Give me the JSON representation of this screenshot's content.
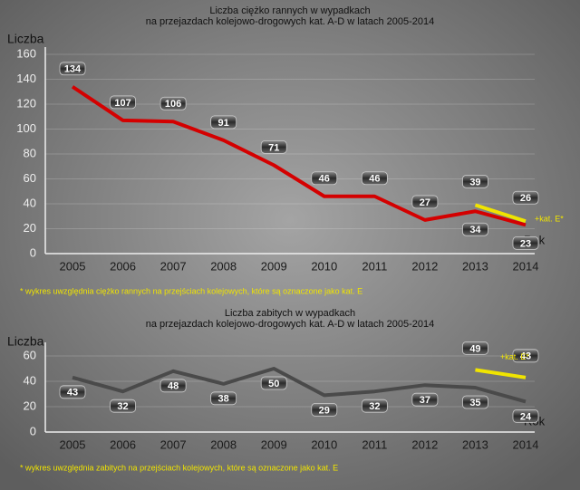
{
  "chart_data": [
    {
      "type": "line",
      "title": [
        "Liczba ciężko rannych w wypadkach",
        "na przejazdach kolejowo-drogowych kat. A-D w latach 2005-2014"
      ],
      "y_label": "Liczba",
      "x_label": "Rok",
      "categories": [
        "2005",
        "2006",
        "2007",
        "2008",
        "2009",
        "2010",
        "2011",
        "2012",
        "2013",
        "2014"
      ],
      "series": [
        {
          "color": "#d40000",
          "values": [
            134,
            107,
            106,
            91,
            71,
            46,
            46,
            27,
            34,
            23
          ]
        },
        {
          "name": "+kat. E*",
          "color": "#f0e400",
          "values": [
            null,
            null,
            null,
            null,
            null,
            null,
            null,
            null,
            39,
            26
          ]
        }
      ],
      "ylim": [
        0,
        160
      ],
      "yticks": [
        0,
        20,
        40,
        60,
        80,
        100,
        120,
        140,
        160
      ],
      "grid": true,
      "note": "* wykres uwzględnia ciężko rannych na przejściach kolejowych, które są oznaczone jako kat. E"
    },
    {
      "type": "line",
      "title": [
        "Liczba zabitych w wypadkach",
        "na przejazdach kolejowo-drogowych kat. A-D w latach 2005-2014"
      ],
      "y_label": "Liczba",
      "x_label": "Rok",
      "categories": [
        "2005",
        "2006",
        "2007",
        "2008",
        "2009",
        "2010",
        "2011",
        "2012",
        "2013",
        "2014"
      ],
      "series": [
        {
          "color": "#4a4a4a",
          "values": [
            43,
            32,
            48,
            38,
            50,
            29,
            32,
            37,
            35,
            24
          ]
        },
        {
          "name": "+kat. E*",
          "color": "#f0e400",
          "values": [
            null,
            null,
            null,
            null,
            null,
            null,
            null,
            null,
            49,
            43
          ]
        }
      ],
      "ylim": [
        0,
        65
      ],
      "yticks": [
        0,
        20,
        40,
        60
      ],
      "grid": true,
      "note": "* wykres uwzględnia zabitych na przejściach kolejowych, które są oznaczone jako kat. E"
    }
  ]
}
